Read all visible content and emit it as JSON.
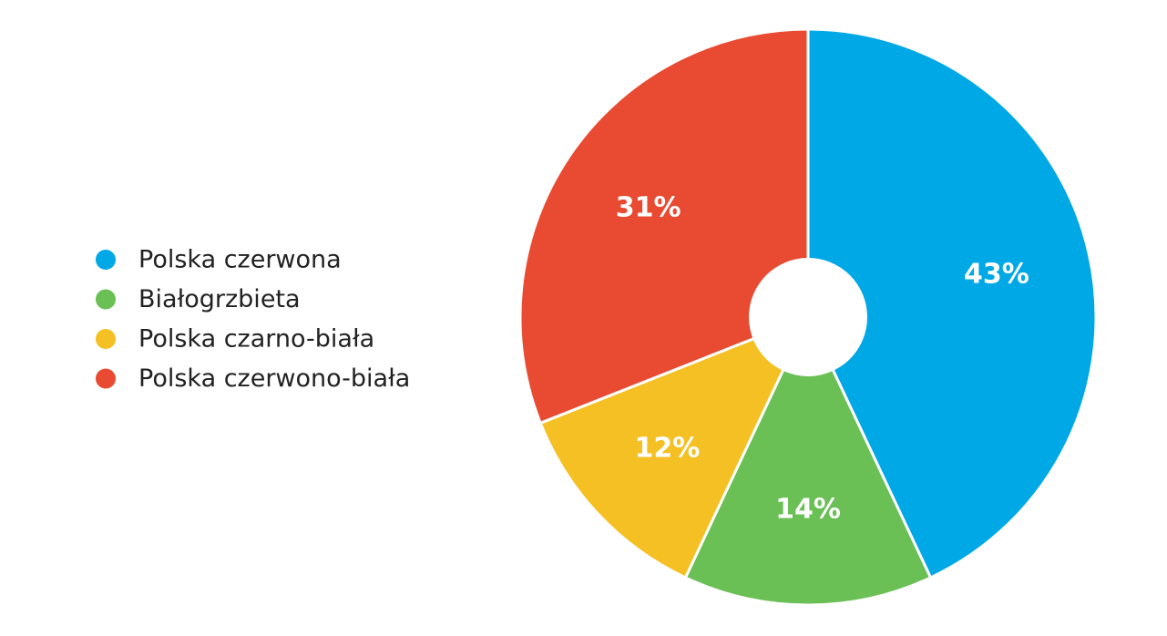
{
  "chart_data": {
    "type": "pie",
    "categories": [
      "Polska czerwona",
      "Białogrzbieta",
      "Polska czarno-biała",
      "Polska czerwono-biała"
    ],
    "values": [
      43,
      14,
      12,
      31
    ],
    "value_labels": [
      "43%",
      "14%",
      "12%",
      "31%"
    ],
    "colors": [
      "#00a8e6",
      "#6abf55",
      "#f4c023",
      "#e84b32"
    ],
    "legend": "left"
  }
}
